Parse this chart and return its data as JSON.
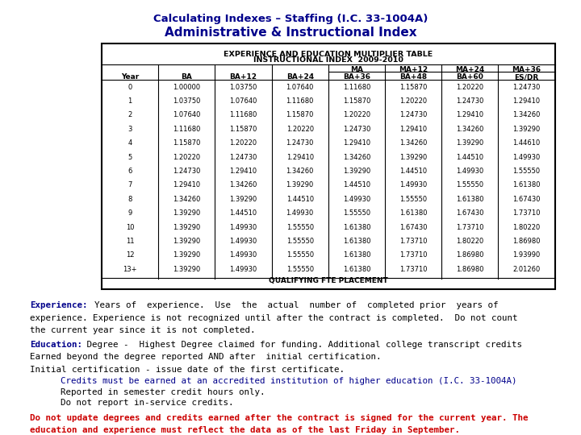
{
  "title1": "Calculating Indexes – Staffing (I.C. 33-1004A)",
  "title2": "Administrative & Instructional Index",
  "table_title1": "EXPERIENCE AND EDUCATION MULTIPLIER TABLE",
  "table_title2": "INSTRUCTIONAL INDEX  2009-2010",
  "table_footer": "QUALIFYING FTE PLACEMENT",
  "col_headers_row1": [
    "",
    "",
    "",
    "",
    "MA",
    "MA+12",
    "MA+24",
    "MA+36"
  ],
  "col_headers_row2": [
    "Year",
    "BA",
    "BA+12",
    "BA+24",
    "BA+36",
    "BA+48",
    "BA+60",
    "ES/DR"
  ],
  "table_data": [
    [
      "0",
      "1.00000",
      "1.03750",
      "1.07640",
      "1.11680",
      "1.15870",
      "1.20220",
      "1.24730"
    ],
    [
      "1",
      "1.03750",
      "1.07640",
      "1.11680",
      "1.15870",
      "1.20220",
      "1.24730",
      "1.29410"
    ],
    [
      "2",
      "1.07640",
      "1.11680",
      "1.15870",
      "1.20220",
      "1.24730",
      "1.29410",
      "1.34260"
    ],
    [
      "3",
      "1.11680",
      "1.15870",
      "1.20220",
      "1.24730",
      "1.29410",
      "1.34260",
      "1.39290"
    ],
    [
      "4",
      "1.15870",
      "1.20220",
      "1.24730",
      "1.29410",
      "1.34260",
      "1.39290",
      "1.44610"
    ],
    [
      "5",
      "1.20220",
      "1.24730",
      "1.29410",
      "1.34260",
      "1.39290",
      "1.44510",
      "1.49930"
    ],
    [
      "6",
      "1.24730",
      "1.29410",
      "1.34260",
      "1.39290",
      "1.44510",
      "1.49930",
      "1.55550"
    ],
    [
      "7",
      "1.29410",
      "1.34260",
      "1.39290",
      "1.44510",
      "1.49930",
      "1.55550",
      "1.61380"
    ],
    [
      "8",
      "1.34260",
      "1.39290",
      "1.44510",
      "1.49930",
      "1.55550",
      "1.61380",
      "1.67430"
    ],
    [
      "9",
      "1.39290",
      "1.44510",
      "1.49930",
      "1.55550",
      "1.61380",
      "1.67430",
      "1.73710"
    ],
    [
      "10",
      "1.39290",
      "1.49930",
      "1.55550",
      "1.61380",
      "1.67430",
      "1.73710",
      "1.80220"
    ],
    [
      "11",
      "1.39290",
      "1.49930",
      "1.55550",
      "1.61380",
      "1.73710",
      "1.80220",
      "1.86980"
    ],
    [
      "12",
      "1.39290",
      "1.49930",
      "1.55550",
      "1.61380",
      "1.73710",
      "1.86980",
      "1.93990"
    ],
    [
      "13+",
      "1.39290",
      "1.49930",
      "1.55550",
      "1.61380",
      "1.73710",
      "1.86980",
      "2.01260"
    ]
  ],
  "bg_color": "#ffffff",
  "title_color": "#00008B",
  "text_color_black": "#000000",
  "text_color_blue": "#00008B",
  "text_color_red": "#CC0000"
}
